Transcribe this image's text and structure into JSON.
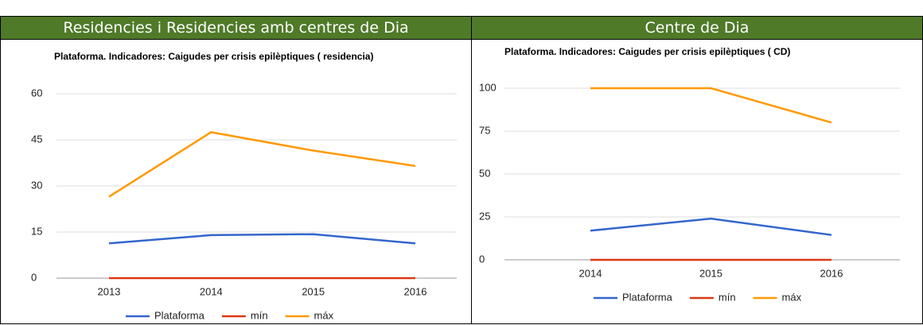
{
  "chart_data": [
    {
      "type": "line",
      "header": "Residencies i Residencies amb centres de Dia",
      "title": "Plataforma. Indicadores: Caigudes per crisis epilèptiques ( residencia)",
      "categories": [
        "2013",
        "2014",
        "2015",
        "2016"
      ],
      "series": [
        {
          "name": "Plataforma",
          "color": "#3366cc",
          "values": [
            11.3,
            14,
            14.3,
            11.3
          ]
        },
        {
          "name": "mín",
          "color": "#dc3912",
          "values": [
            0,
            0,
            0,
            0
          ]
        },
        {
          "name": "máx",
          "color": "#ff9900",
          "values": [
            26.5,
            47.5,
            41.5,
            36.5
          ]
        }
      ],
      "ylim": [
        0,
        60
      ],
      "yticks": [
        0,
        15,
        30,
        45,
        60
      ],
      "grid": true,
      "legend": "bottom"
    },
    {
      "type": "line",
      "header": "Centre de Dia",
      "title": "Plataforma. Indicadores: Caigudes per crisis epilèptiques ( CD)",
      "categories": [
        "2014",
        "2015",
        "2016"
      ],
      "series": [
        {
          "name": "Plataforma",
          "color": "#3366cc",
          "values": [
            17,
            24,
            14.5
          ]
        },
        {
          "name": "mín",
          "color": "#dc3912",
          "values": [
            0,
            0,
            0
          ]
        },
        {
          "name": "máx",
          "color": "#ff9900",
          "values": [
            100,
            100,
            80
          ]
        }
      ],
      "ylim": [
        0,
        100
      ],
      "yticks": [
        0,
        25,
        50,
        75,
        100
      ],
      "grid": true,
      "legend": "bottom"
    }
  ]
}
